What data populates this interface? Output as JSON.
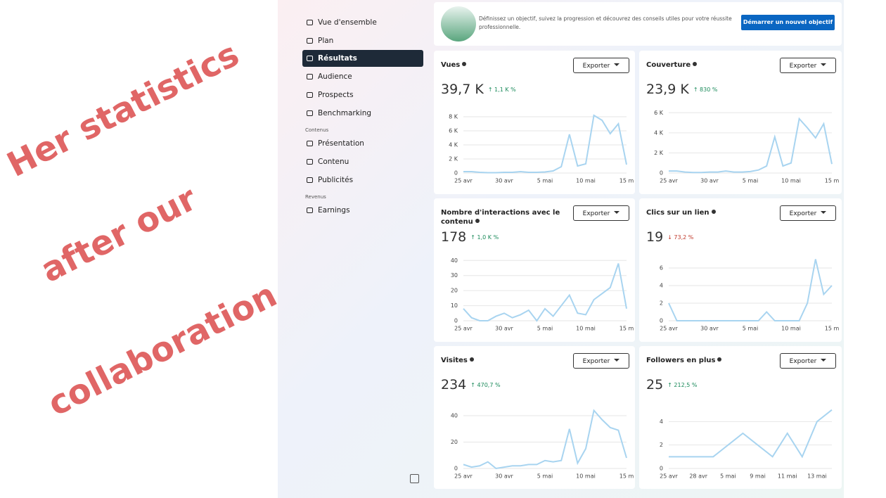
{
  "overlay": {
    "lines": [
      "Her statistics",
      "after our",
      "collaboration"
    ]
  },
  "sidebar": {
    "items": [
      "Vue d'ensemble",
      "Plan",
      "Résultats",
      "Audience",
      "Prospects",
      "Benchmarking"
    ],
    "section1": "Contenus",
    "items2": [
      "Présentation",
      "Contenu",
      "Publicités"
    ],
    "section2": "Revenus",
    "items3": [
      "Earnings"
    ]
  },
  "banner": {
    "text": "Définissez un objectif, suivez la progression et découvrez des conseils utiles pour votre réussite professionnelle.",
    "button": "Démarrer un nouvel objectif"
  },
  "cards": [
    {
      "title": "Vues",
      "metric": "39,7 K",
      "change": "↑ 1,1 K %",
      "export": "Exporter",
      "chart": {
        "type": "line",
        "color": "#a8d4f0",
        "categories": [
          "25 avr",
          null,
          null,
          null,
          null,
          "30 avr",
          null,
          null,
          null,
          null,
          "5 mai",
          null,
          null,
          null,
          null,
          "10 mai",
          null,
          null,
          null,
          null,
          "15 m"
        ],
        "values": [
          200,
          200,
          100,
          50,
          50,
          100,
          100,
          200,
          100,
          100,
          150,
          300,
          900,
          5500,
          1000,
          1300,
          8200,
          7500,
          5600,
          7000,
          1200
        ],
        "ylim": [
          0,
          9000
        ],
        "yticks": [
          0,
          {
            "value": 2000,
            "label": "2 K"
          },
          {
            "value": 4000,
            "label": "4 K"
          },
          {
            "value": 6000,
            "label": "6 K"
          },
          {
            "value": 8000,
            "label": "8 K"
          }
        ]
      }
    },
    {
      "title": "Couverture",
      "metric": "23,9 K",
      "change": "↑ 830 %",
      "export": "Exporter",
      "chart": {
        "type": "line",
        "color": "#a8d4f0",
        "categories": [
          "25 avr",
          null,
          null,
          null,
          null,
          "30 avr",
          null,
          null,
          null,
          null,
          "5 mai",
          null,
          null,
          null,
          null,
          "10 mai",
          null,
          null,
          null,
          null,
          "15 m"
        ],
        "values": [
          200,
          200,
          100,
          50,
          50,
          100,
          100,
          200,
          100,
          100,
          150,
          300,
          700,
          3600,
          700,
          1000,
          5400,
          4500,
          3500,
          4900,
          900
        ],
        "ylim": [
          0,
          6300
        ],
        "yticks": [
          0,
          {
            "value": 2000,
            "label": "2 K"
          },
          {
            "value": 4000,
            "label": "4 K"
          },
          {
            "value": 6000,
            "label": "6 K"
          }
        ]
      }
    },
    {
      "title": "Nombre d'interactions avec le contenu",
      "metric": "178",
      "change": "↑ 1,0 K %",
      "export": "Exporter",
      "chart": {
        "type": "line",
        "color": "#a8d4f0",
        "categories": [
          "25 avr",
          null,
          null,
          null,
          null,
          "30 avr",
          null,
          null,
          null,
          null,
          "5 mai",
          null,
          null,
          null,
          null,
          "10 mai",
          null,
          null,
          null,
          null,
          "15 m"
        ],
        "values": [
          8,
          2,
          0,
          0,
          3,
          5,
          2,
          4,
          7,
          0,
          8,
          3,
          10,
          17,
          5,
          4,
          14,
          18,
          22,
          38,
          8
        ],
        "ylim": [
          0,
          42
        ],
        "yticks": [
          0,
          10,
          20,
          30,
          40
        ]
      }
    },
    {
      "title": "Clics sur un lien",
      "metric": "19",
      "change": "↓ 73,2 %",
      "export": "Exporter",
      "chart": {
        "type": "line",
        "color": "#a8d4f0",
        "categories": [
          "25 avr",
          null,
          null,
          null,
          null,
          "30 avr",
          null,
          null,
          null,
          null,
          "5 mai",
          null,
          null,
          null,
          null,
          "10 mai",
          null,
          null,
          null,
          null,
          "15 m"
        ],
        "values": [
          2,
          0,
          0,
          0,
          0,
          0,
          0,
          0,
          0,
          0,
          0,
          0,
          1,
          0,
          0,
          0,
          0,
          2,
          7,
          3,
          4
        ],
        "ylim": [
          0,
          7.2
        ],
        "yticks": [
          0,
          2,
          4,
          6
        ]
      }
    },
    {
      "title": "Visites",
      "metric": "234",
      "change": "↑ 470,7 %",
      "export": "Exporter",
      "chart": {
        "type": "line",
        "color": "#a8d4f0",
        "categories": [
          "25 avr",
          null,
          null,
          null,
          null,
          "30 avr",
          null,
          null,
          null,
          null,
          "5 mai",
          null,
          null,
          null,
          null,
          "10 mai",
          null,
          null,
          null,
          null,
          "15 m"
        ],
        "values": [
          3,
          1,
          2,
          5,
          0,
          1,
          2,
          2,
          3,
          3,
          6,
          5,
          6,
          30,
          4,
          15,
          44,
          37,
          31,
          29,
          8
        ],
        "ylim": [
          0,
          48
        ],
        "yticks": [
          0,
          20,
          40
        ]
      }
    },
    {
      "title": "Followers en plus",
      "metric": "25",
      "change": "↑ 212,5 %",
      "export": "Exporter",
      "chart": {
        "type": "line",
        "color": "#a8d4f0",
        "categories": [
          "25 avr",
          null,
          "28 avr",
          null,
          "5 mai",
          null,
          "9 mai",
          null,
          "11 mai",
          null,
          "13 mai",
          null
        ],
        "values": [
          1,
          1,
          1,
          1,
          2,
          3,
          2,
          1,
          3,
          1,
          4,
          5
        ],
        "ylim": [
          0,
          5.4
        ],
        "yticks": [
          0,
          2,
          4
        ]
      }
    }
  ]
}
